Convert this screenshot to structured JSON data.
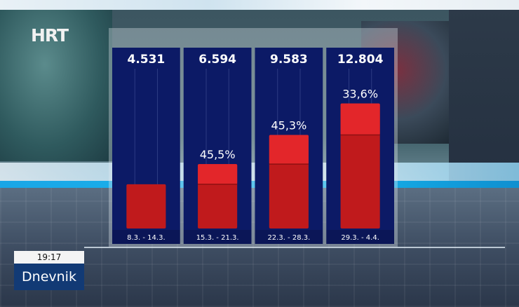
{
  "broadcaster": {
    "logo_text": "HRT",
    "show_name": "Dnevnik",
    "clock": "19:17"
  },
  "colors": {
    "panel": "#0c1a66",
    "bar": "#c01a1c",
    "bar_top": "#e3262a",
    "label_strip": "#0b1657"
  },
  "chart_data": {
    "type": "bar",
    "title": "",
    "xlabel": "",
    "ylabel": "",
    "ylim": [
      0,
      15500
    ],
    "categories": [
      "8.3. - 14.3.",
      "15.3. - 21.3.",
      "22.3. - 28.3.",
      "29.3. - 4.4."
    ],
    "values": [
      4531,
      6594,
      9583,
      12804
    ],
    "value_labels": [
      "4.531",
      "6.594",
      "9.583",
      "12.804"
    ],
    "growth_labels": [
      "",
      "45,5%",
      "45,3%",
      "33,6%"
    ],
    "growth_segments": [
      0,
      2063,
      2989,
      3221
    ],
    "grid": false,
    "legend": "none"
  }
}
